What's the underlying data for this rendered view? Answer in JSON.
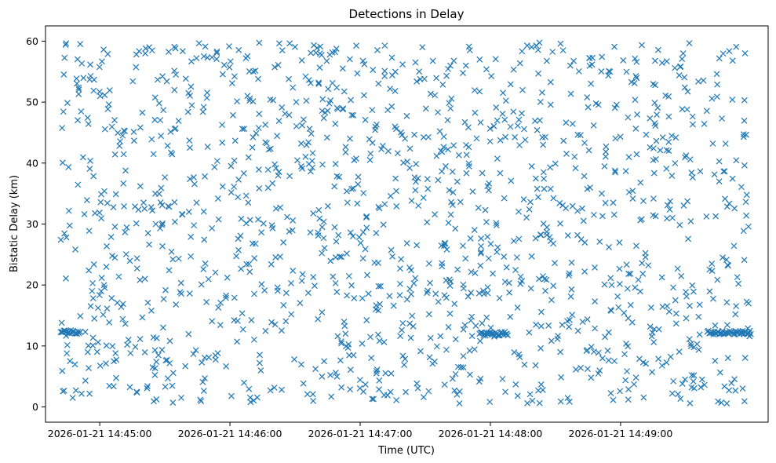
{
  "chart_data": {
    "type": "scatter",
    "title": "Detections in Delay",
    "xlabel": "Time (UTC)",
    "ylabel": "Bistatic Delay (km)",
    "xlim": [
      "2026-01-21 14:44:35",
      "2026-01-21 14:50:08"
    ],
    "ylim": [
      -2.5,
      62.5
    ],
    "x_ticks": [
      "2026-01-21 14:45:00",
      "2026-01-21 14:46:00",
      "2026-01-21 14:47:00",
      "2026-01-21 14:48:00",
      "2026-01-21 14:49:00"
    ],
    "y_ticks": [
      0,
      10,
      20,
      30,
      40,
      50,
      60
    ],
    "marker": "x",
    "grid": false,
    "series_color": "#1f77b4",
    "x_range": [
      "2026-01-21 14:44:42",
      "2026-01-21 14:50:00"
    ],
    "y_range": [
      0.5,
      59.8
    ],
    "points_generated_count": 1500,
    "clusters": [
      {
        "x_start": "2026-01-21 14:44:42",
        "x_end": "2026-01-21 14:44:51",
        "y": 12.3
      },
      {
        "x_start": "2026-01-21 14:47:55",
        "x_end": "2026-01-21 14:48:08",
        "y": 12.0
      },
      {
        "x_start": "2026-01-21 14:49:40",
        "x_end": "2026-01-21 14:50:00",
        "y": 12.2
      }
    ]
  }
}
